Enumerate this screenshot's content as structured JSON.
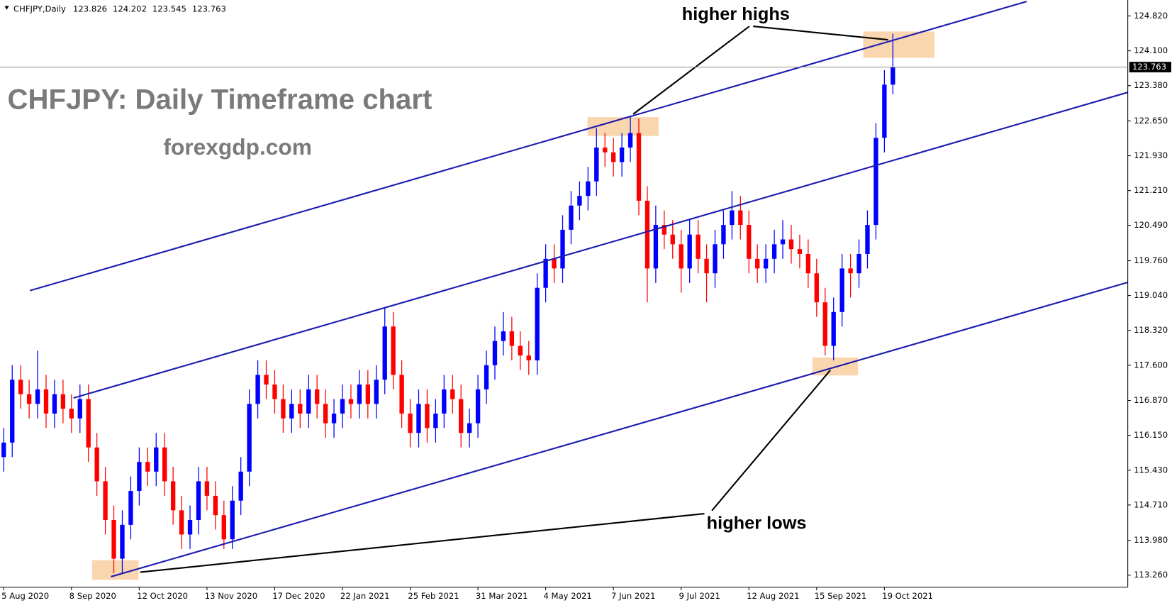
{
  "header": {
    "symbol": "CHFJPY,Daily",
    "open": 123.826,
    "high": 124.202,
    "low": 123.545,
    "close": 123.763
  },
  "chart_data": {
    "type": "candlestick",
    "title": "CHFJPY: Daily Timeframe chart",
    "subtitle": "forexgdp.com",
    "annotations": [
      "higher highs",
      "higher lows"
    ],
    "up_color": "#0000ff",
    "down_color": "#ff0000",
    "last_price": 123.763,
    "ylim": [
      113.01,
      125.15
    ],
    "yticks": [
      {
        "value": 124.82,
        "label": "124.820"
      },
      {
        "value": 124.1,
        "label": "124.100"
      },
      {
        "value": 123.38,
        "label": "123.380"
      },
      {
        "value": 122.65,
        "label": "122.650"
      },
      {
        "value": 121.93,
        "label": "121.930"
      },
      {
        "value": 121.21,
        "label": "121.210"
      },
      {
        "value": 120.49,
        "label": "120.490"
      },
      {
        "value": 119.76,
        "label": "119.760"
      },
      {
        "value": 119.04,
        "label": "119.040"
      },
      {
        "value": 118.32,
        "label": "118.320"
      },
      {
        "value": 117.6,
        "label": "117.600"
      },
      {
        "value": 116.87,
        "label": "116.870"
      },
      {
        "value": 116.15,
        "label": "116.150"
      },
      {
        "value": 115.43,
        "label": "115.430"
      },
      {
        "value": 114.71,
        "label": "114.710"
      },
      {
        "value": 113.98,
        "label": "113.980"
      },
      {
        "value": 113.26,
        "label": "113.260"
      }
    ],
    "categories": [
      "5 Aug 2020",
      null,
      null,
      null,
      null,
      null,
      null,
      null,
      "8 Sep 2020",
      null,
      null,
      null,
      null,
      null,
      null,
      null,
      "12 Oct 2020",
      null,
      null,
      null,
      null,
      null,
      null,
      null,
      "13 Nov 2020",
      null,
      null,
      null,
      null,
      null,
      null,
      null,
      "17 Dec 2020",
      null,
      null,
      null,
      null,
      null,
      null,
      null,
      "22 Jan 2021",
      null,
      null,
      null,
      null,
      null,
      null,
      null,
      "25 Feb 2021",
      null,
      null,
      null,
      null,
      null,
      null,
      null,
      "31 Mar 2021",
      null,
      null,
      null,
      null,
      null,
      null,
      null,
      "4 May 2021",
      null,
      null,
      null,
      null,
      null,
      null,
      null,
      "7 Jun 2021",
      null,
      null,
      null,
      null,
      null,
      null,
      null,
      "9 Jul 2021",
      null,
      null,
      null,
      null,
      null,
      null,
      null,
      "12 Aug 2021",
      null,
      null,
      null,
      null,
      null,
      null,
      null,
      "15 Sep 2021",
      null,
      null,
      null,
      null,
      null,
      null,
      null,
      "19 Oct 2021",
      null
    ],
    "open": [
      115.7,
      116.0,
      117.3,
      117.0,
      116.8,
      117.1,
      116.6,
      117.0,
      116.7,
      116.5,
      116.9,
      115.9,
      115.2,
      114.4,
      113.6,
      114.3,
      115.0,
      115.6,
      115.4,
      115.9,
      115.2,
      114.6,
      114.1,
      114.4,
      115.2,
      114.9,
      114.5,
      114.0,
      114.8,
      115.4,
      116.8,
      117.4,
      117.2,
      116.9,
      116.5,
      116.8,
      116.6,
      117.1,
      116.8,
      116.4,
      116.6,
      116.9,
      116.8,
      117.2,
      116.8,
      117.3,
      118.4,
      117.4,
      116.6,
      116.2,
      116.8,
      116.3,
      116.6,
      117.1,
      116.9,
      116.2,
      116.4,
      117.1,
      117.6,
      118.1,
      118.3,
      118.0,
      117.8,
      117.7,
      119.2,
      119.8,
      119.6,
      120.4,
      120.9,
      121.1,
      121.4,
      122.1,
      122.0,
      121.8,
      122.1,
      122.4,
      121.0,
      119.6,
      120.5,
      120.3,
      120.1,
      119.6,
      120.3,
      119.8,
      119.5,
      120.1,
      120.5,
      120.8,
      120.5,
      119.8,
      119.6,
      119.8,
      120.1,
      120.2,
      120.0,
      119.9,
      119.5,
      118.9,
      118.0,
      118.7,
      119.6,
      119.5,
      119.9,
      120.5,
      122.3,
      123.4
    ],
    "high": [
      116.3,
      117.6,
      117.6,
      117.3,
      117.9,
      117.4,
      117.3,
      117.3,
      117.0,
      117.2,
      117.2,
      116.2,
      115.5,
      114.7,
      114.6,
      115.3,
      115.9,
      115.9,
      116.2,
      116.2,
      115.5,
      114.9,
      114.7,
      115.5,
      115.5,
      115.2,
      114.8,
      115.1,
      115.7,
      117.1,
      117.7,
      117.7,
      117.5,
      117.2,
      117.1,
      117.1,
      117.4,
      117.4,
      117.1,
      116.9,
      117.2,
      117.2,
      117.5,
      117.5,
      117.6,
      118.8,
      118.7,
      117.7,
      116.9,
      117.1,
      117.1,
      116.9,
      117.4,
      117.4,
      117.2,
      116.7,
      117.4,
      117.9,
      118.4,
      118.7,
      118.6,
      118.3,
      118.1,
      119.5,
      120.1,
      120.1,
      120.7,
      121.2,
      121.4,
      121.7,
      122.5,
      122.4,
      122.3,
      122.4,
      122.75,
      122.7,
      121.3,
      120.9,
      120.8,
      120.6,
      120.4,
      120.6,
      120.6,
      120.1,
      120.4,
      120.8,
      121.2,
      121.1,
      120.8,
      120.1,
      120.1,
      120.4,
      120.6,
      120.5,
      120.3,
      120.2,
      119.8,
      119.2,
      119.0,
      119.9,
      119.9,
      120.2,
      120.8,
      122.6,
      123.7,
      124.45
    ],
    "low": [
      115.4,
      115.7,
      116.7,
      116.5,
      116.5,
      116.3,
      116.3,
      116.4,
      116.2,
      116.2,
      115.6,
      114.9,
      114.1,
      113.3,
      113.3,
      114.0,
      114.7,
      115.1,
      115.1,
      114.9,
      114.3,
      113.8,
      113.8,
      114.1,
      114.6,
      114.2,
      113.8,
      113.8,
      114.5,
      115.1,
      116.5,
      116.9,
      116.6,
      116.2,
      116.2,
      116.3,
      116.3,
      116.5,
      116.1,
      116.1,
      116.3,
      116.5,
      116.5,
      116.5,
      116.5,
      117.0,
      117.1,
      116.3,
      115.9,
      115.9,
      116.0,
      116.0,
      116.3,
      116.6,
      115.9,
      115.9,
      116.1,
      116.8,
      117.3,
      117.8,
      117.7,
      117.5,
      117.4,
      117.4,
      118.9,
      119.3,
      119.3,
      120.1,
      120.6,
      120.8,
      121.1,
      121.7,
      121.5,
      121.5,
      121.8,
      120.7,
      118.9,
      119.3,
      120.0,
      119.8,
      119.1,
      119.3,
      119.5,
      118.9,
      119.2,
      119.8,
      120.2,
      120.2,
      119.5,
      119.3,
      119.3,
      119.5,
      119.8,
      119.7,
      119.6,
      119.2,
      118.6,
      117.8,
      117.7,
      118.4,
      119.0,
      119.2,
      119.6,
      120.2,
      122.0,
      123.2
    ],
    "close": [
      116.0,
      117.3,
      117.0,
      116.8,
      117.1,
      116.6,
      117.0,
      116.7,
      116.5,
      116.9,
      115.9,
      115.2,
      114.4,
      113.6,
      114.3,
      115.0,
      115.6,
      115.4,
      115.9,
      115.2,
      114.6,
      114.1,
      114.4,
      115.2,
      114.9,
      114.5,
      114.0,
      114.8,
      115.4,
      116.8,
      117.4,
      117.2,
      116.9,
      116.5,
      116.8,
      116.6,
      117.1,
      116.8,
      116.4,
      116.6,
      116.9,
      116.8,
      117.2,
      116.8,
      117.3,
      118.4,
      117.4,
      116.6,
      116.2,
      116.8,
      116.3,
      116.6,
      117.1,
      116.9,
      116.2,
      116.4,
      117.1,
      117.6,
      118.1,
      118.3,
      118.0,
      117.8,
      117.7,
      119.2,
      119.8,
      119.6,
      120.4,
      120.9,
      121.1,
      121.4,
      122.1,
      122.0,
      121.8,
      122.1,
      122.4,
      121.0,
      119.6,
      120.5,
      120.3,
      120.1,
      119.6,
      120.3,
      119.8,
      119.5,
      120.1,
      120.5,
      120.8,
      120.5,
      119.8,
      119.6,
      119.8,
      120.1,
      120.2,
      120.0,
      119.9,
      119.5,
      118.9,
      118.0,
      118.7,
      119.6,
      119.5,
      119.9,
      120.5,
      122.3,
      123.4,
      123.763
    ]
  }
}
